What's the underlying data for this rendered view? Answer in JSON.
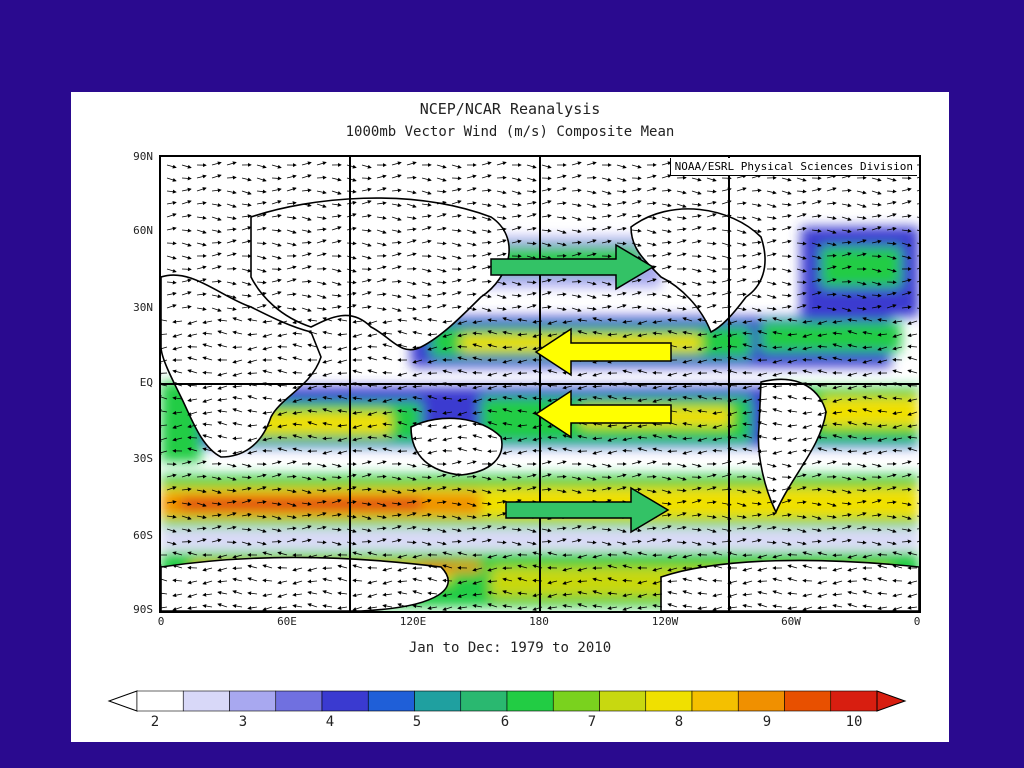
{
  "header": {
    "title": "NCEP/NCAR Reanalysis",
    "subtitle": "1000mb Vector Wind (m/s) Composite Mean"
  },
  "credit": "NOAA/ESRL Physical Sciences Division",
  "period": "Jan to Dec: 1979 to 2010",
  "lat_labels": [
    "90N",
    "60N",
    "30N",
    "EQ",
    "30S",
    "60S",
    "90S"
  ],
  "lon_labels": [
    "0",
    "60E",
    "120E",
    "180",
    "120W",
    "60W",
    "0"
  ],
  "colorbar": {
    "labels": [
      "2",
      "3",
      "4",
      "5",
      "6",
      "7",
      "8",
      "9",
      "10"
    ],
    "colors": [
      "#ffffff",
      "#d8d8f8",
      "#a8a8f0",
      "#7070e0",
      "#3a3ad0",
      "#1f5fd8",
      "#1fa0a0",
      "#2ab870",
      "#22cc44",
      "#7ad21e",
      "#c8d810",
      "#f0e000",
      "#f4c000",
      "#f09000",
      "#e85000",
      "#d81e10"
    ]
  },
  "annotation_arrows": [
    {
      "direction": "east",
      "color": "#33c266",
      "band": "westerlies-north"
    },
    {
      "direction": "west",
      "color": "#ffff00",
      "band": "trade-winds-north"
    },
    {
      "direction": "west",
      "color": "#ffff00",
      "band": "trade-winds-south"
    },
    {
      "direction": "east",
      "color": "#33c266",
      "band": "westerlies-south"
    }
  ]
}
